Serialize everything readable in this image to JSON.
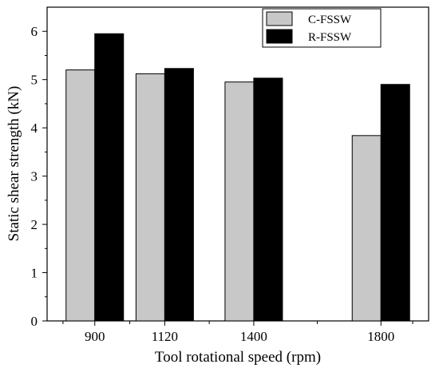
{
  "chart_data": {
    "type": "bar",
    "categories": [
      "900",
      "1120",
      "1400",
      "1800"
    ],
    "category_x": [
      900,
      1120,
      1400,
      1800
    ],
    "series": [
      {
        "name": "C-FSSW",
        "values": [
          5.2,
          5.12,
          4.95,
          3.84
        ],
        "color": "#c8c8c8"
      },
      {
        "name": "R-FSSW",
        "values": [
          5.95,
          5.23,
          5.03,
          4.9
        ],
        "color": "#000000"
      }
    ],
    "xlabel": "Tool rotational speed (rpm)",
    "ylabel": "Static shear strength (kN)",
    "xlim": [
      750,
      1950
    ],
    "ylim": [
      0,
      6.5
    ],
    "yticks": [
      "0",
      "1",
      "2",
      "3",
      "4",
      "5",
      "6"
    ],
    "grid": false,
    "legend_position": "top-right"
  }
}
